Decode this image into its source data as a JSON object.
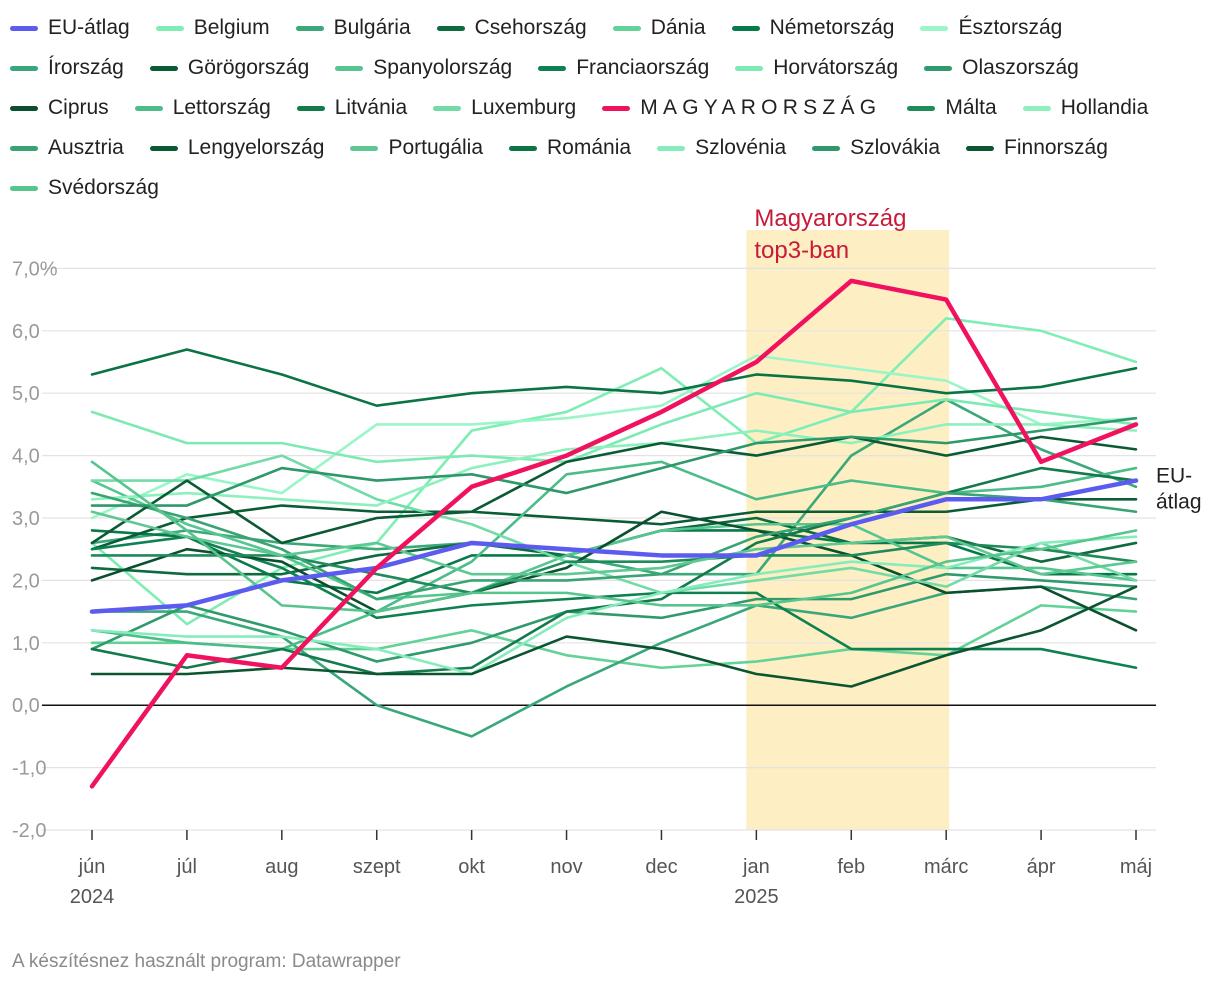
{
  "chart_data": {
    "type": "line",
    "x": [
      "jún",
      "júl",
      "aug",
      "szept",
      "okt",
      "nov",
      "dec",
      "jan",
      "feb",
      "márc",
      "ápr",
      "máj"
    ],
    "year_labels": [
      {
        "index": 0,
        "label": "2024"
      },
      {
        "index": 7,
        "label": "2025"
      }
    ],
    "y_ticks": [
      {
        "value": 7,
        "label": "7,0%"
      },
      {
        "value": 6,
        "label": "6,0"
      },
      {
        "value": 5,
        "label": "5,0"
      },
      {
        "value": 4,
        "label": "4,0"
      },
      {
        "value": 3,
        "label": "3,0"
      },
      {
        "value": 2,
        "label": "2,0"
      },
      {
        "value": 1,
        "label": "1,0"
      },
      {
        "value": 0,
        "label": "0,0"
      },
      {
        "value": -1,
        "label": "-1,0"
      },
      {
        "value": -2,
        "label": "-2,0"
      }
    ],
    "ylim": [
      -2,
      7.6
    ],
    "grid": true,
    "legend_position": "top",
    "highlight_band": {
      "from_index": 7,
      "to_index": 9,
      "color": "#fdefc3",
      "label_lines": [
        "Magyarország",
        "top3-ban"
      ],
      "label_color": "#c81b3a"
    },
    "end_label": {
      "lines": [
        "EU-",
        "átlag"
      ],
      "series": "EU-átlag"
    },
    "series": [
      {
        "name": "EU-átlag",
        "color": "#5b5bf0",
        "role": "average",
        "values": [
          1.5,
          1.6,
          2.0,
          2.2,
          2.6,
          2.5,
          2.4,
          2.4,
          2.9,
          3.3,
          3.3,
          3.6
        ]
      },
      {
        "name": "Belgium",
        "color": "#7eeeb4",
        "values": [
          2.6,
          1.3,
          2.2,
          2.6,
          4.4,
          4.7,
          5.4,
          4.2,
          4.7,
          6.2,
          6.0,
          5.5
        ]
      },
      {
        "name": "Bulgária",
        "color": "#3aa878",
        "values": [
          2.6,
          2.8,
          2.6,
          2.5,
          2.6,
          2.4,
          2.1,
          2.1,
          4.0,
          4.9,
          4.1,
          3.5
        ]
      },
      {
        "name": "Csehország",
        "color": "#0e6b3e",
        "values": [
          2.2,
          2.1,
          2.1,
          2.4,
          2.6,
          2.4,
          2.8,
          3.0,
          2.6,
          2.7,
          2.3,
          2.6
        ]
      },
      {
        "name": "Dánia",
        "color": "#62d296",
        "values": [
          1.0,
          1.0,
          0.9,
          0.9,
          1.2,
          0.8,
          0.6,
          0.7,
          0.9,
          0.8,
          1.6,
          1.5
        ]
      },
      {
        "name": "Németország",
        "color": "#087a4a",
        "values": [
          2.8,
          2.7,
          2.0,
          1.8,
          2.4,
          2.4,
          2.8,
          2.8,
          2.6,
          2.6,
          2.1,
          2.1
        ]
      },
      {
        "name": "Észtország",
        "color": "#9af5c7",
        "values": [
          3.0,
          3.7,
          3.4,
          4.5,
          4.5,
          4.6,
          4.8,
          5.6,
          5.4,
          5.2,
          4.5,
          4.6
        ]
      },
      {
        "name": "Írország",
        "color": "#3aa77a",
        "values": [
          1.5,
          1.5,
          1.1,
          0.0,
          -0.5,
          0.3,
          1.0,
          1.6,
          1.4,
          1.8,
          1.9,
          1.7
        ]
      },
      {
        "name": "Görögország",
        "color": "#0a5c35",
        "values": [
          2.5,
          3.0,
          3.2,
          3.1,
          3.1,
          3.0,
          2.9,
          3.1,
          3.1,
          3.1,
          3.3,
          3.3
        ]
      },
      {
        "name": "Spanyolország",
        "color": "#55c690",
        "values": [
          3.6,
          2.9,
          2.4,
          1.7,
          1.8,
          2.4,
          2.8,
          2.9,
          2.9,
          2.2,
          2.2,
          2.0
        ]
      },
      {
        "name": "Franciaország",
        "color": "#0f8050",
        "values": [
          2.5,
          2.7,
          2.2,
          1.4,
          1.6,
          1.7,
          1.8,
          1.8,
          0.9,
          0.9,
          0.9,
          0.6
        ]
      },
      {
        "name": "Horvátország",
        "color": "#7deab3",
        "values": [
          4.7,
          4.2,
          4.2,
          3.9,
          4.0,
          3.9,
          4.5,
          5.0,
          4.7,
          4.9,
          4.7,
          4.5
        ]
      },
      {
        "name": "Olaszország",
        "color": "#2f9a6c",
        "values": [
          0.9,
          1.6,
          1.2,
          0.7,
          1.0,
          1.5,
          1.4,
          1.7,
          1.7,
          2.1,
          2.0,
          1.9
        ]
      },
      {
        "name": "Ciprus",
        "color": "#0b4f2e",
        "values": [
          2.0,
          2.5,
          2.3,
          1.5,
          1.8,
          2.2,
          3.1,
          2.8,
          2.4,
          1.8,
          1.9,
          1.2
        ]
      },
      {
        "name": "Lettország",
        "color": "#4cbd88",
        "values": [
          1.2,
          1.0,
          0.9,
          1.5,
          2.3,
          3.7,
          3.9,
          3.3,
          3.6,
          3.4,
          3.5,
          3.8
        ]
      },
      {
        "name": "Litvánia",
        "color": "#137a4c",
        "values": [
          0.9,
          0.6,
          0.9,
          0.5,
          0.6,
          1.5,
          1.7,
          2.6,
          3.0,
          3.4,
          3.8,
          3.6
        ]
      },
      {
        "name": "Luxemburg",
        "color": "#72dba6",
        "values": [
          3.6,
          3.6,
          4.0,
          3.3,
          2.9,
          2.3,
          1.8,
          2.0,
          2.2,
          1.9,
          2.6,
          2.0
        ]
      },
      {
        "name": "MAGYARORSZÁG",
        "color": "#f0125e",
        "role": "highlight",
        "values": [
          -1.3,
          0.8,
          0.6,
          2.2,
          3.5,
          4.0,
          4.7,
          5.5,
          6.8,
          6.5,
          3.9,
          4.5
        ]
      },
      {
        "name": "Málta",
        "color": "#1f8a5a",
        "values": [
          2.4,
          2.4,
          2.4,
          2.1,
          1.8,
          2.3,
          2.3,
          2.4,
          2.4,
          2.6,
          2.5,
          2.3
        ]
      },
      {
        "name": "Hollandia",
        "color": "#8ef0bd",
        "values": [
          3.3,
          3.4,
          3.3,
          3.2,
          3.8,
          4.1,
          4.2,
          4.4,
          4.2,
          4.5,
          4.5,
          4.4
        ]
      },
      {
        "name": "Ausztria",
        "color": "#3aa373",
        "values": [
          3.4,
          3.0,
          2.5,
          1.7,
          2.0,
          2.0,
          2.1,
          2.7,
          3.0,
          3.4,
          3.3,
          3.1
        ]
      },
      {
        "name": "Lengyelország",
        "color": "#0a5a33",
        "values": [
          2.6,
          3.6,
          2.6,
          3.0,
          3.1,
          3.9,
          4.2,
          4.0,
          4.3,
          4.0,
          4.3,
          4.1
        ]
      },
      {
        "name": "Portugália",
        "color": "#5fc892",
        "values": [
          3.1,
          2.7,
          2.4,
          2.6,
          2.1,
          2.1,
          2.2,
          2.5,
          2.6,
          2.7,
          2.1,
          2.3
        ]
      },
      {
        "name": "Románia",
        "color": "#0a7445",
        "values": [
          5.3,
          5.7,
          5.3,
          4.8,
          5.0,
          5.1,
          5.0,
          5.3,
          5.2,
          5.0,
          5.1,
          5.4
        ]
      },
      {
        "name": "Szlovénia",
        "color": "#86ecbb",
        "values": [
          1.2,
          1.1,
          1.1,
          0.9,
          0.5,
          1.4,
          1.8,
          2.1,
          2.3,
          2.2,
          2.6,
          2.7
        ]
      },
      {
        "name": "Szlovákia",
        "color": "#2e986a",
        "values": [
          3.2,
          3.2,
          3.8,
          3.6,
          3.7,
          3.4,
          3.8,
          4.2,
          4.3,
          4.2,
          4.4,
          4.6
        ]
      },
      {
        "name": "Finnország",
        "color": "#0b5530",
        "values": [
          0.5,
          0.5,
          0.6,
          0.5,
          0.5,
          1.1,
          0.9,
          0.5,
          0.3,
          0.8,
          1.2,
          1.9
        ]
      },
      {
        "name": "Svédország",
        "color": "#58c48e",
        "values": [
          3.9,
          2.8,
          1.6,
          1.5,
          1.8,
          1.8,
          1.6,
          1.6,
          1.8,
          2.3,
          2.5,
          2.8
        ]
      }
    ]
  },
  "source_note": "A készítésnez használt program: Datawrapper"
}
